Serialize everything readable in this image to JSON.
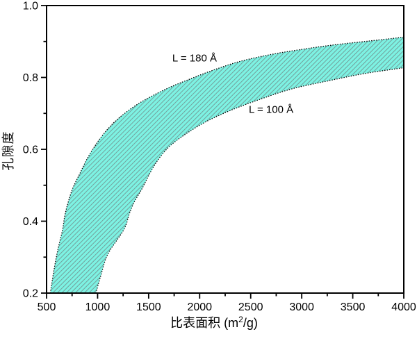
{
  "colors": {
    "band_fill": "#7df2e3",
    "hatch_line": "#73a09b",
    "curve_stroke": "#000000",
    "axis_stroke": "#000000",
    "text": "#000000",
    "background": "#ffffff"
  },
  "chart_data": {
    "type": "area",
    "title": "",
    "xlabel": "比表面积 (m²/g)",
    "xlabel_parts": {
      "pre": "比表面积 (m",
      "sup": "2",
      "post": "/g)"
    },
    "ylabel": "孔隙度",
    "xlim": [
      500,
      4000
    ],
    "ylim": [
      0.2,
      1.0
    ],
    "grid": false,
    "frame": "full-box",
    "tick_direction": "out",
    "x_ticks": [
      {
        "v": 500,
        "label": "500"
      },
      {
        "v": 1000,
        "label": "1000"
      },
      {
        "v": 1500,
        "label": "1500"
      },
      {
        "v": 2000,
        "label": "2000"
      },
      {
        "v": 2500,
        "label": "2500"
      },
      {
        "v": 3000,
        "label": "3000"
      },
      {
        "v": 3500,
        "label": "3500"
      },
      {
        "v": 4000,
        "label": "4000"
      }
    ],
    "x_minor_ticks": [
      750,
      1250,
      1750,
      2250,
      2750,
      3250,
      3750
    ],
    "y_ticks": [
      {
        "v": 1.0,
        "label": "1.0"
      },
      {
        "v": 0.8,
        "label": "0.8"
      },
      {
        "v": 0.6,
        "label": "0.6"
      },
      {
        "v": 0.4,
        "label": "0.4"
      },
      {
        "v": 0.2,
        "label": "0.2"
      }
    ],
    "y_minor_ticks": [
      0.3,
      0.5,
      0.7,
      0.9
    ],
    "legend": "none",
    "band_fill_between_series": true,
    "series": [
      {
        "name": "L = 180 Å",
        "role": "upper-bound",
        "line_style": "dotted",
        "points": [
          [
            537,
            0.2
          ],
          [
            570,
            0.26
          ],
          [
            610,
            0.32
          ],
          [
            657,
            0.377
          ],
          [
            679,
            0.416
          ],
          [
            713,
            0.454
          ],
          [
            759,
            0.493
          ],
          [
            827,
            0.533
          ],
          [
            900,
            0.575
          ],
          [
            980,
            0.612
          ],
          [
            1080,
            0.65
          ],
          [
            1200,
            0.685
          ],
          [
            1400,
            0.727
          ],
          [
            1650,
            0.765
          ],
          [
            1900,
            0.795
          ],
          [
            2150,
            0.822
          ],
          [
            2400,
            0.845
          ],
          [
            2700,
            0.864
          ],
          [
            3000,
            0.878
          ],
          [
            3300,
            0.89
          ],
          [
            3650,
            0.901
          ],
          [
            4000,
            0.912
          ]
        ]
      },
      {
        "name": "L = 100 Å",
        "role": "lower-bound",
        "line_style": "dotted",
        "points": [
          [
            983,
            0.2
          ],
          [
            1030,
            0.247
          ],
          [
            1100,
            0.308
          ],
          [
            1258,
            0.377
          ],
          [
            1310,
            0.42
          ],
          [
            1360,
            0.454
          ],
          [
            1440,
            0.493
          ],
          [
            1510,
            0.532
          ],
          [
            1590,
            0.57
          ],
          [
            1700,
            0.607
          ],
          [
            1850,
            0.64
          ],
          [
            2050,
            0.675
          ],
          [
            2300,
            0.708
          ],
          [
            2600,
            0.74
          ],
          [
            2900,
            0.768
          ],
          [
            3250,
            0.79
          ],
          [
            3600,
            0.81
          ],
          [
            4000,
            0.827
          ]
        ]
      }
    ],
    "annotations": [
      {
        "text": "L = 180 Å",
        "anchor_x": 1950,
        "anchor_y": 0.853
      },
      {
        "text": "L = 100 Å",
        "anchor_x": 2700,
        "anchor_y": 0.71
      }
    ]
  }
}
